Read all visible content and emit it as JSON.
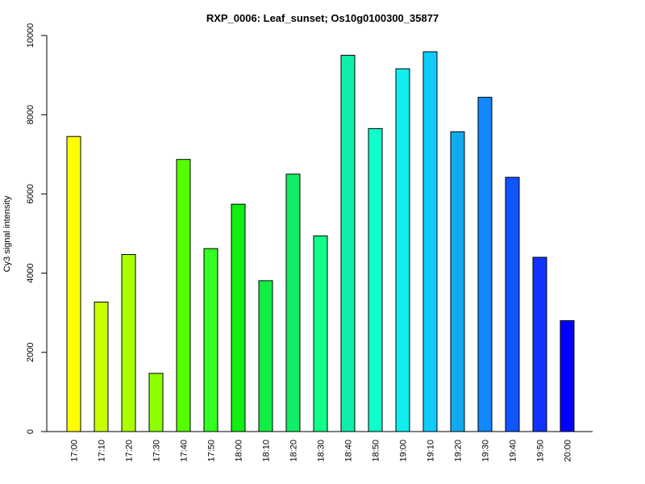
{
  "chart_data": {
    "type": "bar",
    "title": "RXP_0006: Leaf_sunset; Os10g0100300_35877",
    "xlabel": "",
    "ylabel": "Cy3 signal intensity",
    "ylim": [
      0,
      10000
    ],
    "yticks": [
      0,
      2000,
      4000,
      6000,
      8000,
      10000
    ],
    "grid": false,
    "legend": "none",
    "categories": [
      "17:00",
      "17:10",
      "17:20",
      "17:30",
      "17:40",
      "17:50",
      "18:00",
      "18:10",
      "18:20",
      "18:30",
      "18:40",
      "18:50",
      "19:00",
      "19:10",
      "19:20",
      "19:30",
      "19:40",
      "19:50",
      "20:00"
    ],
    "values": [
      7450,
      3270,
      4470,
      1470,
      6870,
      4620,
      5740,
      3810,
      6500,
      4940,
      9500,
      7650,
      9160,
      9590,
      7570,
      8440,
      6420,
      4400,
      2800
    ],
    "colors": [
      "#FFFF00",
      "#C8FF00",
      "#AAFF00",
      "#8CFF00",
      "#55FF00",
      "#33FF22",
      "#11EE11",
      "#11EE44",
      "#11EE66",
      "#11FF88",
      "#11EEAA",
      "#11FFCC",
      "#11EEEE",
      "#11CCFF",
      "#11AAEE",
      "#1188FF",
      "#1155FF",
      "#1133FF",
      "#0000FF"
    ]
  }
}
